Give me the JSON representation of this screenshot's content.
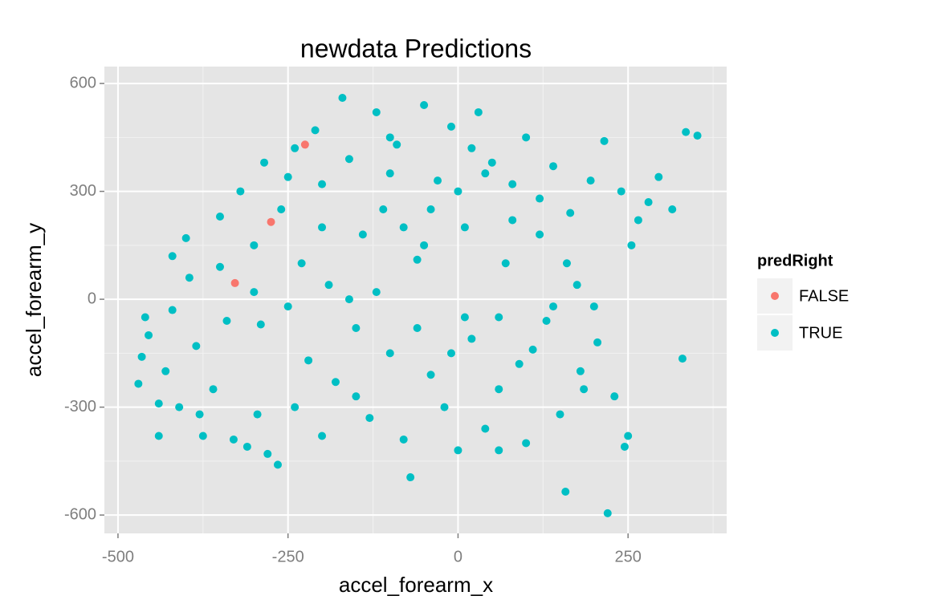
{
  "chart_data": {
    "type": "scatter",
    "title": "newdata Predictions",
    "x_label": "accel_forearm_x",
    "y_label": "accel_forearm_y",
    "legend_title": "predRight",
    "legend_position": "right",
    "xlim": [
      -520,
      395
    ],
    "ylim": [
      -651,
      647
    ],
    "xticks": [
      -500,
      -250,
      0,
      250
    ],
    "yticks": [
      -600,
      -300,
      0,
      300,
      600
    ],
    "grid": true,
    "series": [
      {
        "name": "FALSE",
        "color": "#F8766D",
        "x": [
          -275,
          -328,
          -225
        ],
        "y": [
          215,
          45,
          430
        ]
      },
      {
        "name": "TRUE",
        "color": "#00BFC4",
        "x": [
          -470,
          -465,
          -455,
          -440,
          -430,
          -420,
          -410,
          -400,
          -395,
          -385,
          -375,
          -360,
          -350,
          -340,
          -330,
          -320,
          -310,
          -300,
          -295,
          -285,
          -280,
          -265,
          -260,
          -250,
          -240,
          -230,
          -220,
          -210,
          -200,
          -190,
          -180,
          -170,
          -160,
          -150,
          -140,
          -130,
          -120,
          -110,
          -100,
          -90,
          -80,
          -70,
          -60,
          -50,
          -40,
          -30,
          -20,
          -10,
          0,
          10,
          20,
          30,
          40,
          50,
          60,
          70,
          80,
          90,
          100,
          110,
          120,
          130,
          140,
          150,
          158,
          165,
          175,
          185,
          195,
          205,
          215,
          220,
          230,
          240,
          245,
          250,
          255,
          265,
          280,
          295,
          315,
          330,
          335,
          352,
          -440,
          -460,
          -380,
          -420,
          -290,
          -240,
          -200,
          -160,
          -120,
          -80,
          -40,
          0,
          40,
          80,
          120,
          160,
          -200,
          -100,
          -50,
          20,
          60,
          -10,
          200,
          -350,
          -250,
          -300,
          -150,
          -60,
          100,
          60,
          180,
          140,
          -100,
          10
        ],
        "y": [
          -235,
          -160,
          -100,
          -380,
          -200,
          -30,
          -300,
          170,
          60,
          -130,
          -380,
          -250,
          90,
          -60,
          -390,
          300,
          -410,
          150,
          -320,
          380,
          -430,
          -460,
          250,
          -20,
          420,
          100,
          -170,
          470,
          320,
          40,
          -230,
          560,
          390,
          -80,
          180,
          -330,
          520,
          250,
          -150,
          430,
          -390,
          -495,
          110,
          540,
          -210,
          330,
          -300,
          480,
          -420,
          200,
          -110,
          520,
          -360,
          380,
          -250,
          100,
          320,
          -180,
          450,
          -140,
          280,
          -60,
          370,
          -320,
          -535,
          240,
          40,
          -250,
          330,
          -120,
          440,
          -595,
          -270,
          300,
          -410,
          -380,
          150,
          220,
          270,
          340,
          250,
          -165,
          465,
          455,
          -290,
          -50,
          -320,
          120,
          -70,
          -300,
          -380,
          0,
          20,
          200,
          250,
          300,
          350,
          220,
          180,
          100,
          200,
          350,
          150,
          420,
          -50,
          -150,
          -20,
          230,
          340,
          20,
          -270,
          -80,
          -400,
          -420,
          -200,
          -20,
          450,
          -50
        ]
      }
    ]
  }
}
